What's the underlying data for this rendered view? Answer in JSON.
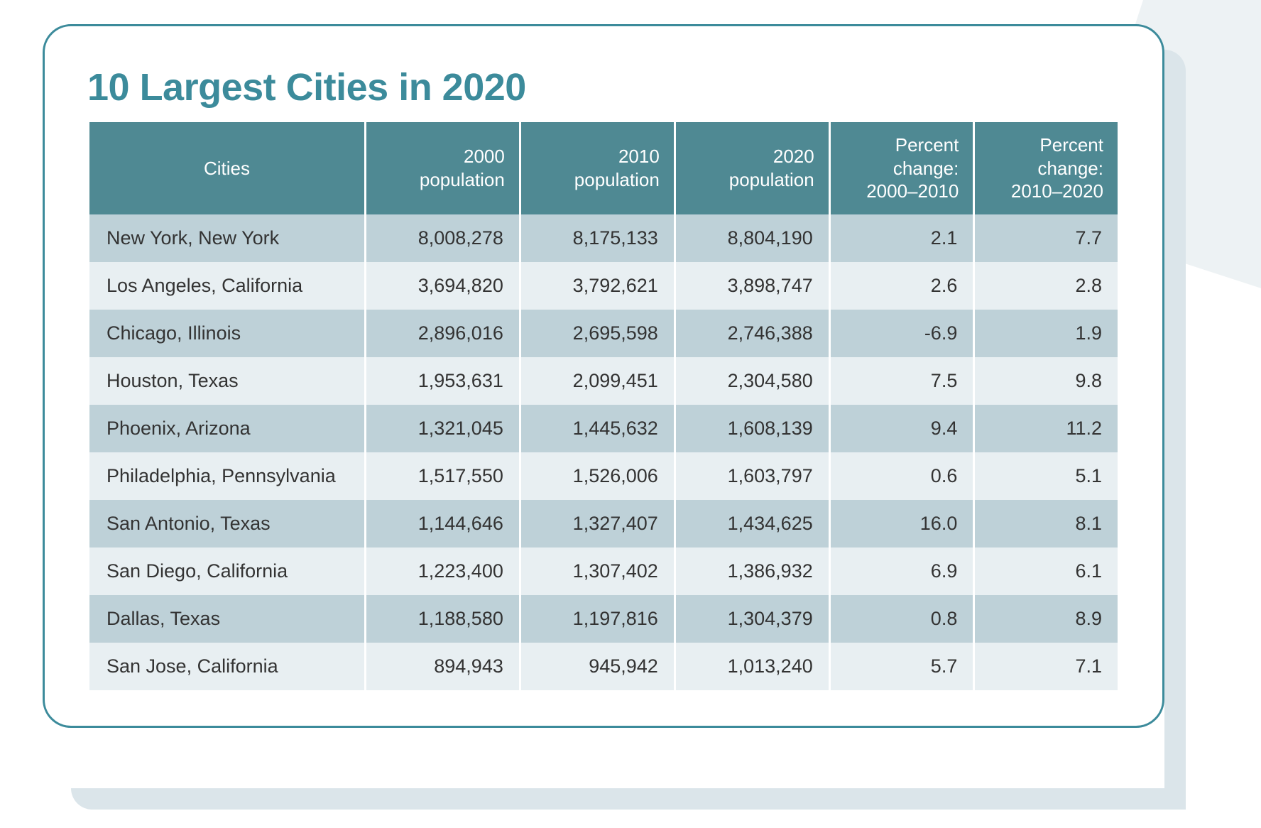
{
  "styling": {
    "title_color": "#3c8b9b",
    "border_color": "#3c8b9b",
    "header_bg": "#4f8993",
    "header_text": "#ffffff",
    "row_odd_bg": "#bed1d8",
    "row_even_bg": "#e8eff2",
    "cell_text": "#333333",
    "shadow_color": "#dbe5ea",
    "title_fontsize": 54,
    "header_fontsize": 26,
    "cell_fontsize": 27,
    "border_radius": 40,
    "col_widths_pct": [
      27,
      15,
      15,
      15,
      14,
      14
    ]
  },
  "title": "10 Largest Cities in 2020",
  "table": {
    "columns": [
      "Cities",
      "2000 population",
      "2010 population",
      "2020 population",
      "Percent change: 2000–2010",
      "Percent change: 2010–2020"
    ],
    "rows": [
      [
        "New York, New York",
        "8,008,278",
        "8,175,133",
        "8,804,190",
        "2.1",
        "7.7"
      ],
      [
        "Los Angeles, California",
        "3,694,820",
        "3,792,621",
        "3,898,747",
        "2.6",
        "2.8"
      ],
      [
        "Chicago, Illinois",
        "2,896,016",
        "2,695,598",
        "2,746,388",
        "-6.9",
        "1.9"
      ],
      [
        "Houston, Texas",
        "1,953,631",
        "2,099,451",
        "2,304,580",
        "7.5",
        "9.8"
      ],
      [
        "Phoenix, Arizona",
        "1,321,045",
        "1,445,632",
        "1,608,139",
        "9.4",
        "11.2"
      ],
      [
        "Philadelphia, Pennsylvania",
        "1,517,550",
        "1,526,006",
        "1,603,797",
        "0.6",
        "5.1"
      ],
      [
        "San Antonio, Texas",
        "1,144,646",
        "1,327,407",
        "1,434,625",
        "16.0",
        "8.1"
      ],
      [
        "San Diego, California",
        "1,223,400",
        "1,307,402",
        "1,386,932",
        "6.9",
        "6.1"
      ],
      [
        "Dallas, Texas",
        "1,188,580",
        "1,197,816",
        "1,304,379",
        "0.8",
        "8.9"
      ],
      [
        "San Jose, California",
        "894,943",
        "945,942",
        "1,013,240",
        "5.7",
        "7.1"
      ]
    ]
  }
}
